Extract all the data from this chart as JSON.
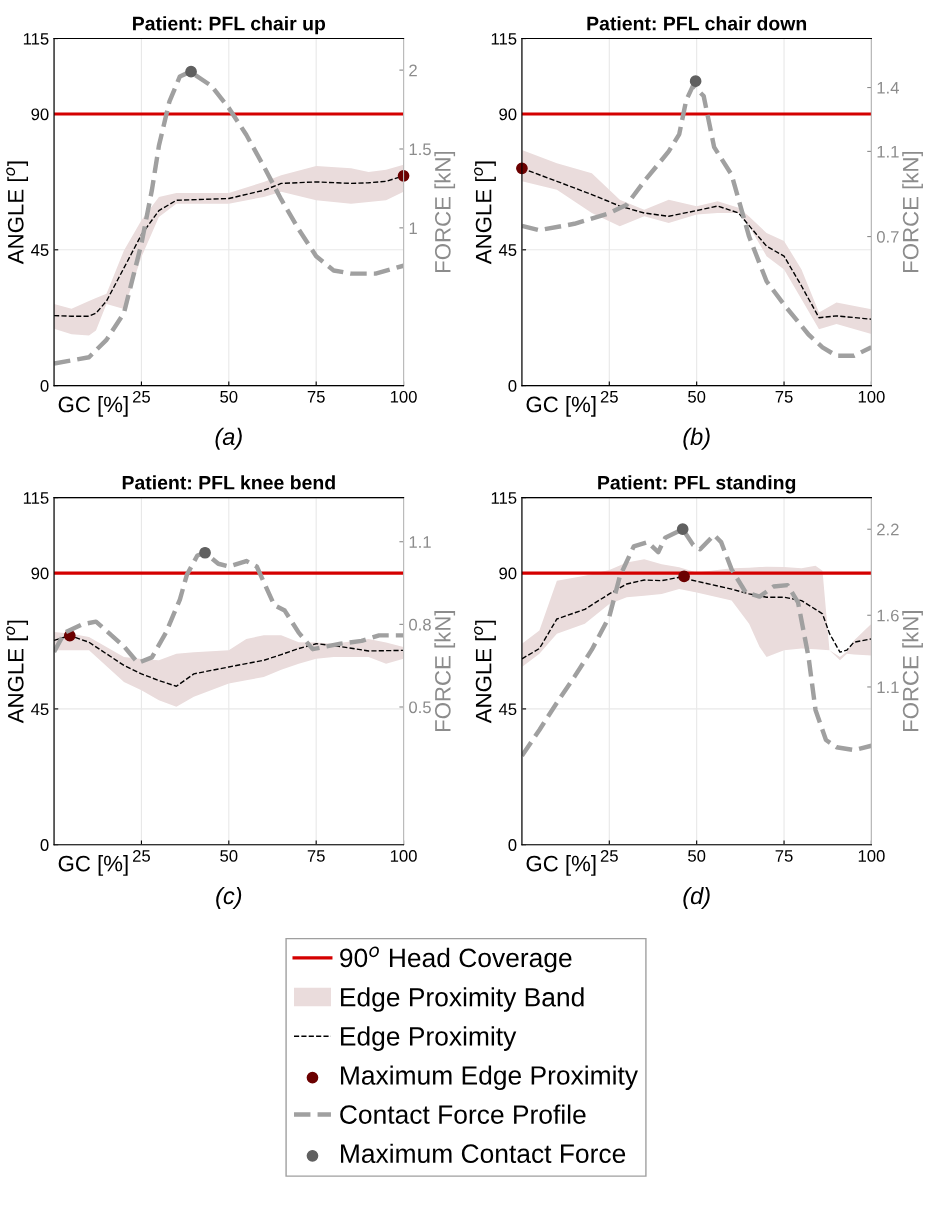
{
  "chart_data": [
    {
      "type": "line",
      "title": "Patient: PFL chair up",
      "xlabel": "GC [%]",
      "ylabel": "ANGLE [$^{o}$]",
      "y2label": "FORCE [kN]",
      "annotations": [
        "(a)"
      ],
      "xlim": [
        0,
        100
      ],
      "xticks": [
        25,
        50,
        75,
        100
      ],
      "ylim": [
        0,
        115
      ],
      "yticks": [
        0,
        45,
        90,
        115
      ],
      "y2lim": [
        0,
        2.2
      ],
      "y2ticks": [
        1,
        1.5,
        2
      ],
      "grid": true,
      "legend": false,
      "ref_lines": [
        {
          "axis": "y",
          "value": 90,
          "color": "#d40000"
        }
      ],
      "series": [
        {
          "type": "area",
          "color": "#eadcdc"
        },
        {
          "color": "#000000",
          "line_style": "dashed",
          "x": [
            0,
            5,
            10,
            12,
            15,
            20,
            25,
            30,
            35,
            50,
            60,
            65,
            75,
            85,
            90,
            95,
            100
          ],
          "values": [
            23.2,
            23,
            23,
            24,
            28,
            39,
            50,
            58,
            61.4,
            62,
            64.7,
            67,
            67.5,
            67,
            67.2,
            67.7,
            69.5
          ],
          "lower": [
            18.8,
            17,
            16.6,
            18.3,
            27,
            25.4,
            42.6,
            55.9,
            60.3,
            60.3,
            62.5,
            64.2,
            61.4,
            60.3,
            60.8,
            61.4,
            64.2
          ],
          "upper": [
            27,
            25.5,
            28,
            29,
            30.4,
            44.8,
            54.8,
            62.5,
            63.8,
            63.8,
            67.5,
            69.7,
            72.8,
            72,
            70.8,
            71.5,
            73.2
          ]
        },
        {
          "type": "scatter",
          "color": "#6b0000",
          "marker": "circle",
          "x": [
            100
          ],
          "values": [
            69.5
          ]
        },
        {
          "axis": "y2",
          "color": "#a0a0a0",
          "line_style": "dashed",
          "x": [
            0,
            10,
            15,
            20,
            25,
            28,
            30,
            33,
            36,
            39,
            45,
            50,
            55,
            60,
            65,
            70,
            75,
            80,
            85,
            92,
            100
          ],
          "values": [
            0.14,
            0.18,
            0.29,
            0.46,
            0.9,
            1.24,
            1.52,
            1.8,
            1.96,
            1.99,
            1.9,
            1.76,
            1.59,
            1.39,
            1.18,
            0.99,
            0.82,
            0.73,
            0.71,
            0.71,
            0.76
          ]
        },
        {
          "type": "scatter",
          "axis": "y2",
          "color": "#606060",
          "marker": "circle",
          "x": [
            39.2
          ],
          "values": [
            1.99
          ]
        }
      ]
    },
    {
      "type": "line",
      "title": "Patient: PFL chair down",
      "xlabel": "GC [%]",
      "ylabel": "ANGLE [$^{o}$]",
      "y2label": "FORCE [kN]",
      "annotations": [
        "(b)"
      ],
      "xlim": [
        0,
        100
      ],
      "xticks": [
        25,
        50,
        75,
        100
      ],
      "ylim": [
        0,
        115
      ],
      "yticks": [
        0,
        45,
        90,
        115
      ],
      "y2lim": [
        0,
        1.63
      ],
      "y2ticks": [
        0.7,
        1.1,
        1.4
      ],
      "grid": true,
      "legend": false,
      "ref_lines": [
        {
          "axis": "y",
          "value": 90,
          "color": "#d40000"
        }
      ],
      "series": [
        {
          "type": "area",
          "color": "#eadcdc"
        },
        {
          "color": "#000000",
          "line_style": "dashed",
          "x": [
            0,
            10,
            20,
            28,
            35,
            42,
            50,
            56,
            62,
            65,
            70,
            75,
            80,
            85,
            90,
            100
          ],
          "values": [
            72,
            67.7,
            63.3,
            59.5,
            57.2,
            56.1,
            58,
            59.5,
            57.2,
            53,
            46.2,
            42.9,
            33,
            22.5,
            23.1,
            22
          ],
          "lower": [
            67.7,
            64.9,
            57.2,
            52.8,
            56.1,
            53.9,
            56.7,
            57.2,
            57.2,
            52.8,
            42.9,
            38.5,
            28.6,
            18.7,
            20.4,
            17.1
          ],
          "upper": [
            78.1,
            73.7,
            70.4,
            61.6,
            58.3,
            61.6,
            59.4,
            61.1,
            58.9,
            56,
            50.6,
            47.9,
            38.5,
            24.2,
            27.5,
            25.3
          ]
        },
        {
          "type": "scatter",
          "color": "#6b0000",
          "marker": "circle",
          "x": [
            0
          ],
          "values": [
            72
          ]
        },
        {
          "axis": "y2",
          "color": "#a0a0a0",
          "line_style": "dashed",
          "x": [
            0,
            5,
            15,
            25,
            30,
            35,
            42,
            45,
            47,
            49,
            52,
            55,
            60,
            65,
            70,
            75,
            82,
            86,
            90,
            95,
            100
          ],
          "values": [
            0.75,
            0.73,
            0.76,
            0.81,
            0.85,
            0.96,
            1.1,
            1.18,
            1.34,
            1.41,
            1.36,
            1.12,
            0.99,
            0.7,
            0.49,
            0.38,
            0.24,
            0.18,
            0.14,
            0.14,
            0.18
          ]
        },
        {
          "type": "scatter",
          "axis": "y2",
          "color": "#606060",
          "marker": "circle",
          "x": [
            49.7
          ],
          "values": [
            1.43
          ]
        }
      ]
    },
    {
      "type": "line",
      "title": "Patient: PFL knee bend",
      "xlabel": "GC [%]",
      "ylabel": "ANGLE [$^{o}$]",
      "y2label": "FORCE [kN]",
      "annotations": [
        "(c)"
      ],
      "xlim": [
        0,
        100
      ],
      "xticks": [
        25,
        50,
        75,
        100
      ],
      "ylim": [
        0,
        115
      ],
      "yticks": [
        0,
        45,
        90,
        115
      ],
      "y2lim": [
        0,
        1.26
      ],
      "y2ticks": [
        0.5,
        0.8,
        1.1
      ],
      "grid": true,
      "legend": false,
      "ref_lines": [
        {
          "axis": "y",
          "value": 90,
          "color": "#d40000"
        }
      ],
      "series": [
        {
          "type": "area",
          "color": "#eadcdc"
        },
        {
          "color": "#000000",
          "line_style": "dashed",
          "x": [
            0,
            4.5,
            10,
            20,
            25,
            30,
            35,
            40,
            50,
            55,
            60,
            65,
            70,
            75,
            80,
            90,
            95,
            100
          ],
          "values": [
            67.7,
            69.3,
            67.1,
            59.4,
            56.6,
            54.4,
            52.5,
            56.6,
            58.9,
            60,
            61.1,
            63,
            65,
            66.6,
            66,
            64.2,
            64.3,
            64.4
          ],
          "lower": [
            64.4,
            64.4,
            64.4,
            53.9,
            51.2,
            47.9,
            45.7,
            49,
            53.4,
            54.5,
            55.6,
            58,
            60,
            61.6,
            62.2,
            62.2,
            60,
            61.6
          ],
          "upper": [
            70.5,
            70,
            68.8,
            62.2,
            61.5,
            61.1,
            63.3,
            63.8,
            64.4,
            68.2,
            69.4,
            69.4,
            67.1,
            67,
            66.6,
            68.2,
            67,
            65.5
          ]
        },
        {
          "type": "scatter",
          "color": "#6b0000",
          "marker": "circle",
          "x": [
            4.5
          ],
          "values": [
            69.3
          ]
        },
        {
          "axis": "y2",
          "color": "#a0a0a0",
          "line_style": "dashed",
          "x": [
            0,
            3,
            8,
            12,
            20,
            24,
            28,
            32,
            36,
            38,
            41,
            43.2,
            47,
            50,
            55,
            58,
            63,
            66,
            70,
            74,
            78,
            82,
            88,
            93,
            100
          ],
          "values": [
            0.7,
            0.77,
            0.8,
            0.81,
            0.72,
            0.66,
            0.68,
            0.77,
            0.89,
            0.98,
            1.05,
            1.06,
            1.02,
            1.01,
            1.03,
            1.01,
            0.87,
            0.85,
            0.77,
            0.71,
            0.72,
            0.73,
            0.74,
            0.76,
            0.76
          ]
        },
        {
          "type": "scatter",
          "axis": "y2",
          "color": "#606060",
          "marker": "circle",
          "x": [
            43.2
          ],
          "values": [
            1.06
          ]
        }
      ]
    },
    {
      "type": "line",
      "title": "Patient: PFL standing",
      "xlabel": "GC [%]",
      "ylabel": "ANGLE [$^{o}$]",
      "y2label": "FORCE [kN]",
      "annotations": [
        "(d)"
      ],
      "xlim": [
        0,
        100
      ],
      "xticks": [
        25,
        50,
        75,
        100
      ],
      "ylim": [
        0,
        115
      ],
      "yticks": [
        0,
        45,
        90,
        115
      ],
      "y2lim": [
        0,
        2.42
      ],
      "y2ticks": [
        1.1,
        1.6,
        2.2
      ],
      "grid": true,
      "legend": "bottom",
      "ref_lines": [
        {
          "axis": "y",
          "value": 90,
          "color": "#d40000",
          "label": "90$^{o}$ Head Coverage"
        }
      ],
      "series": [
        {
          "type": "area",
          "name": "Edge Proximity Band",
          "color": "#eadcdc"
        },
        {
          "name": "Edge Proximity",
          "color": "#000000",
          "line_style": "dashed",
          "x": [
            0,
            5,
            10,
            18,
            25,
            30,
            35,
            40,
            45,
            50,
            60,
            65,
            68,
            70,
            75,
            80,
            84,
            86,
            88,
            91,
            93,
            95,
            100
          ],
          "values": [
            61.6,
            65,
            74.8,
            78,
            83.1,
            86.4,
            87.7,
            87.5,
            88.6,
            87.3,
            84.7,
            83.1,
            82.5,
            82,
            82,
            80.9,
            78,
            76.5,
            70,
            63.8,
            64.5,
            67.1,
            68.2
          ],
          "lower": [
            58.9,
            63.3,
            69.9,
            73.2,
            79.8,
            82,
            82.5,
            83.1,
            84.7,
            83.6,
            80.9,
            73.2,
            65.5,
            62.2,
            64.4,
            65,
            64.8,
            64.6,
            64.4,
            61.1,
            63.3,
            63,
            62.7
          ],
          "upper": [
            66.6,
            71,
            87.5,
            89.1,
            91,
            93.5,
            94.6,
            92.9,
            91.9,
            90.2,
            91.6,
            91.8,
            92,
            92.1,
            92,
            91.6,
            92.4,
            90.8,
            64.4,
            62.2,
            64,
            67.7,
            73.2
          ]
        },
        {
          "type": "scatter",
          "name": "Maximum Edge Proximity",
          "color": "#6b0000",
          "marker": "circle",
          "x": [
            46.4
          ],
          "values": [
            88.9
          ]
        },
        {
          "axis": "y2",
          "name": "Contact Force Profile",
          "color": "#a0a0a0",
          "line_style": "dashed",
          "x": [
            0,
            5,
            10,
            15,
            20,
            25,
            28,
            32,
            36,
            39,
            41,
            46,
            49,
            51,
            55,
            57,
            60,
            64,
            68,
            72,
            76,
            79,
            82,
            84,
            87,
            90,
            95,
            100
          ],
          "values": [
            0.62,
            0.8,
            0.99,
            1.17,
            1.36,
            1.59,
            1.87,
            2.08,
            2.11,
            2.04,
            2.14,
            2.2,
            2.09,
            2.06,
            2.16,
            2.11,
            1.92,
            1.76,
            1.73,
            1.8,
            1.81,
            1.69,
            1.31,
            0.94,
            0.73,
            0.68,
            0.66,
            0.69
          ]
        },
        {
          "type": "scatter",
          "axis": "y2",
          "name": "Maximum Contact Force",
          "color": "#606060",
          "marker": "circle",
          "x": [
            46
          ],
          "values": [
            2.2
          ]
        }
      ]
    }
  ]
}
